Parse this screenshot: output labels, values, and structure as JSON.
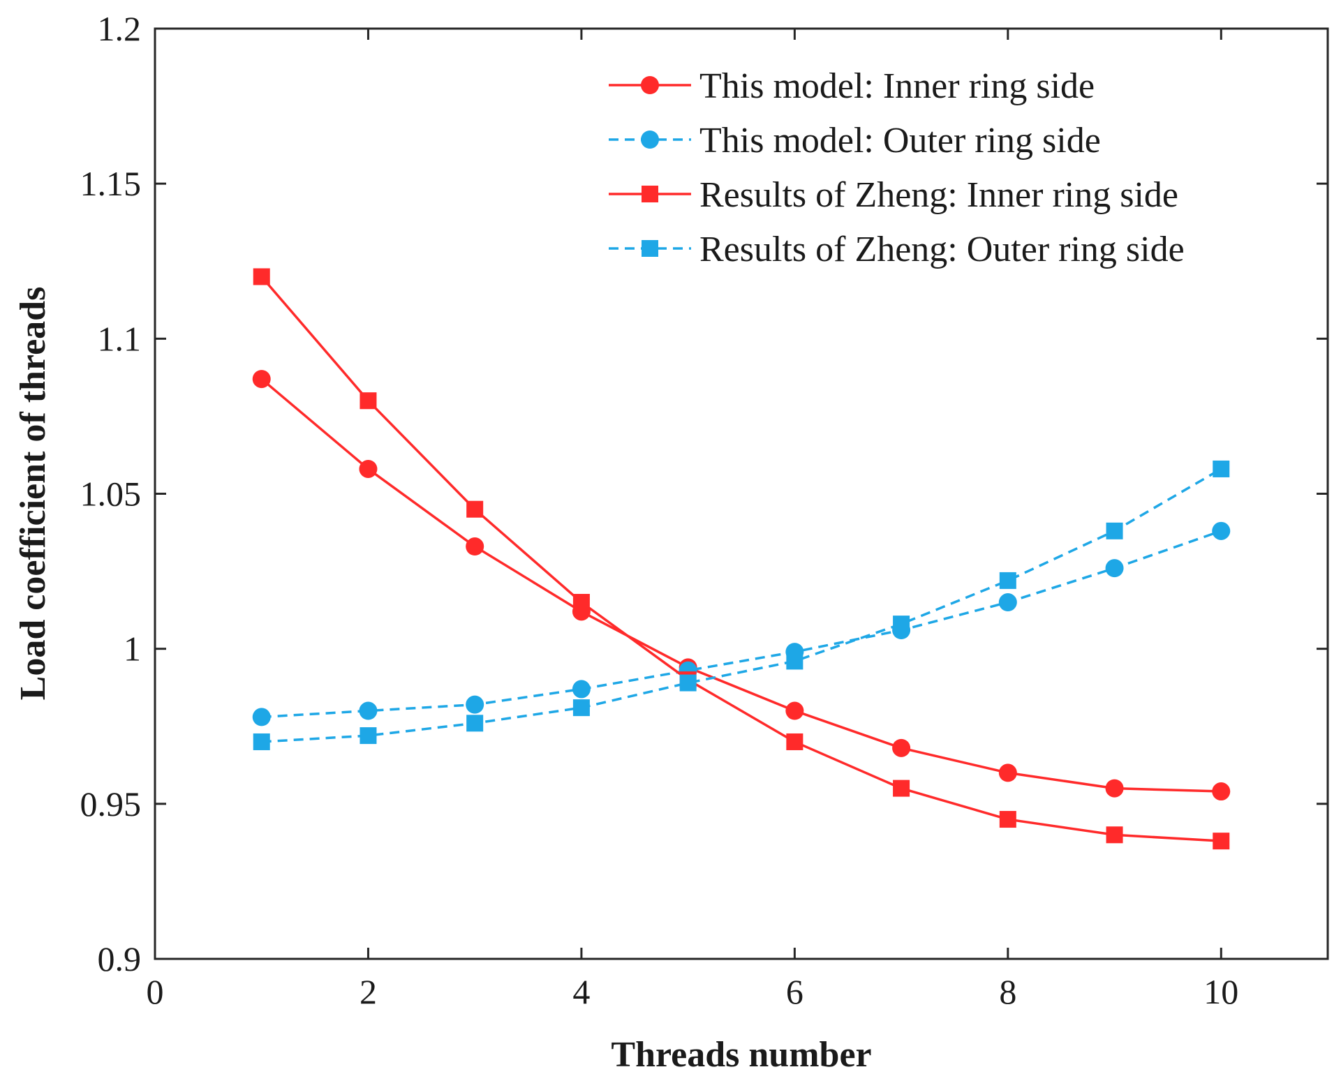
{
  "chart_data": {
    "type": "line",
    "title": "",
    "xlabel": "Threads number",
    "ylabel": "Load coefficient of threads",
    "xlim": [
      0,
      11
    ],
    "ylim": [
      0.9,
      1.2
    ],
    "x_ticks": [
      0,
      2,
      4,
      6,
      8,
      10
    ],
    "x_tick_labels": [
      "0",
      "2",
      "4",
      "6",
      "8",
      "10"
    ],
    "y_ticks": [
      0.9,
      0.95,
      1.0,
      1.05,
      1.1,
      1.15,
      1.2
    ],
    "y_tick_labels": [
      "0.9",
      "0.95",
      "1",
      "1.05",
      "1.1",
      "1.15",
      "1.2"
    ],
    "grid": false,
    "legend_position": "top-right",
    "x": [
      1,
      2,
      3,
      4,
      5,
      6,
      7,
      8,
      9,
      10
    ],
    "series": [
      {
        "name": "This model: Inner ring side",
        "color": "#ff2a2a",
        "line_style": "solid",
        "marker": "circle",
        "values": [
          1.087,
          1.058,
          1.033,
          1.012,
          0.994,
          0.98,
          0.968,
          0.96,
          0.955,
          0.954
        ]
      },
      {
        "name": "This model: Outer ring side",
        "color": "#1ea7e6",
        "line_style": "dashed",
        "marker": "circle",
        "values": [
          0.978,
          0.98,
          0.982,
          0.987,
          0.993,
          0.999,
          1.006,
          1.015,
          1.026,
          1.038
        ]
      },
      {
        "name": "Results of Zheng: Inner ring side",
        "color": "#ff2a2a",
        "line_style": "solid",
        "marker": "square",
        "values": [
          1.12,
          1.08,
          1.045,
          1.015,
          0.99,
          0.97,
          0.955,
          0.945,
          0.94,
          0.938
        ]
      },
      {
        "name": "Results of Zheng: Outer ring side",
        "color": "#1ea7e6",
        "line_style": "dashed",
        "marker": "square",
        "values": [
          0.97,
          0.972,
          0.976,
          0.981,
          0.989,
          0.996,
          1.008,
          1.022,
          1.038,
          1.058
        ]
      }
    ]
  }
}
